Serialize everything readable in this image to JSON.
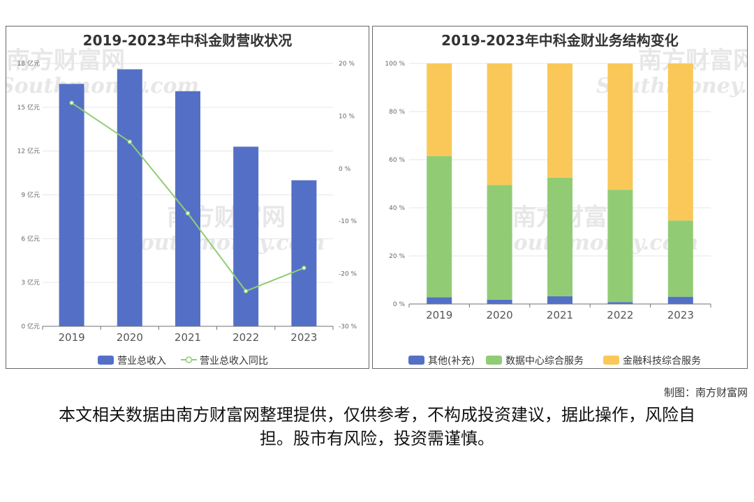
{
  "left_chart_title": "2019-2023年中科金财营收状况",
  "right_chart_title": "2019-2023年中科金财业务结构变化",
  "watermark_cn": "南方财富网",
  "watermark_en": "Southmoney.com",
  "credit": "制图：南方财富网",
  "disclaimer": "本文相关数据由南方财富网整理提供，仅供参考，不构成投资建议，据此操作，风险自担。股市有风险，投资需谨慎。",
  "chart_data": [
    {
      "type": "bar",
      "title": "2019-2023年中科金财营收状况",
      "categories": [
        "2019",
        "2020",
        "2021",
        "2022",
        "2023"
      ],
      "series": [
        {
          "name": "营业总收入",
          "type": "bar",
          "axis": "left",
          "color": "#5470c6",
          "values": [
            16.6,
            17.6,
            16.1,
            12.3,
            10.0
          ]
        },
        {
          "name": "营业总收入同比",
          "type": "line",
          "axis": "right",
          "color": "#91cc75",
          "values": [
            12.5,
            5.1,
            -8.5,
            -23.3,
            -18.9
          ]
        }
      ],
      "y_left": {
        "ticks": [
          0,
          3,
          6,
          9,
          12,
          15,
          18
        ],
        "tick_labels": [
          "0 亿元",
          "3 亿元",
          "6 亿元",
          "9 亿元",
          "12 亿元",
          "15 亿元",
          "18 亿元"
        ],
        "ylim": [
          0,
          18
        ]
      },
      "y_right": {
        "ticks": [
          -30,
          -20,
          -10,
          0,
          10,
          20
        ],
        "tick_labels": [
          "-30 %",
          "-20 %",
          "-10 %",
          "0 %",
          "10 %",
          "20 %"
        ],
        "ylim": [
          -30,
          20
        ]
      },
      "grid": true,
      "legend": "bottom"
    },
    {
      "type": "bar",
      "stacked": true,
      "title": "2019-2023年中科金财业务结构变化",
      "categories": [
        "2019",
        "2020",
        "2021",
        "2022",
        "2023"
      ],
      "series": [
        {
          "name": "其他(补充)",
          "color": "#5470c6",
          "values": [
            2.8,
            1.8,
            3.2,
            0.8,
            3.0
          ]
        },
        {
          "name": "数据中心综合服务",
          "color": "#91cc75",
          "values": [
            58.7,
            47.7,
            49.3,
            46.7,
            31.7
          ]
        },
        {
          "name": "金融科技综合服务",
          "color": "#fac858",
          "values": [
            38.5,
            50.5,
            47.5,
            52.5,
            65.3
          ]
        }
      ],
      "y": {
        "ticks": [
          0,
          20,
          40,
          60,
          80,
          100
        ],
        "tick_labels": [
          "0 %",
          "20 %",
          "40 %",
          "60 %",
          "80 %",
          "100 %"
        ],
        "ylim": [
          0,
          100
        ]
      },
      "grid": true,
      "legend": "bottom"
    }
  ]
}
